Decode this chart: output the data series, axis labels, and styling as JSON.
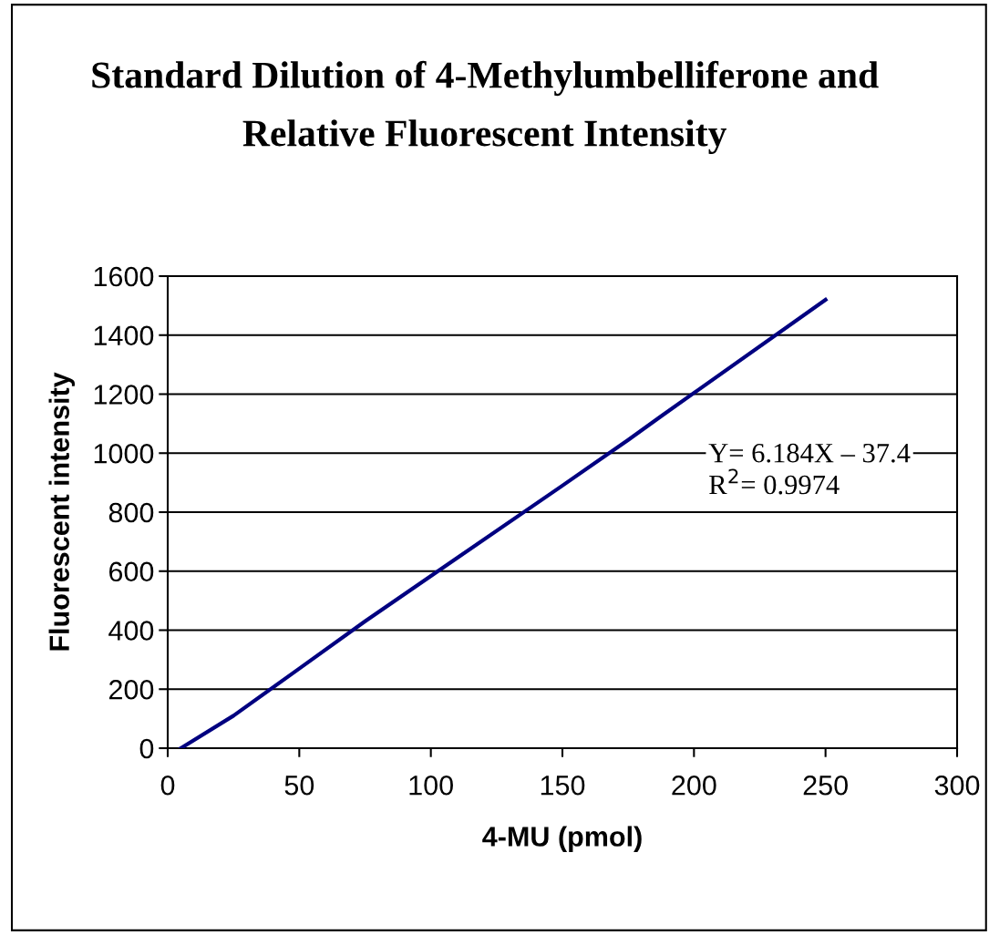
{
  "chart_data": {
    "type": "line",
    "title": "Standard Dilution of 4-Methylumbelliferone and\nRelative Fluorescent Intensity",
    "xlabel": "4-MU (pmol)",
    "ylabel": "Fluorescent intensity",
    "x": [
      5,
      25,
      50,
      75,
      112.5,
      150,
      175,
      187.5,
      250
    ],
    "series": [
      {
        "color": "#000080",
        "values": [
          0,
          110,
          270,
          430,
          660,
          890,
          1045,
          1125,
          1520
        ]
      }
    ],
    "xlim": [
      0,
      300
    ],
    "xticks": [
      0,
      50,
      100,
      150,
      200,
      250,
      300
    ],
    "ylim": [
      0,
      1600
    ],
    "yticks": [
      0,
      200,
      400,
      600,
      800,
      1000,
      1200,
      1400,
      1600
    ],
    "grid": "y",
    "legend": false,
    "marker": "none",
    "line_style": "solid",
    "annotations": [
      "Y= 6.184X – 37.4",
      "R$^{2}$= 0.9974"
    ]
  }
}
